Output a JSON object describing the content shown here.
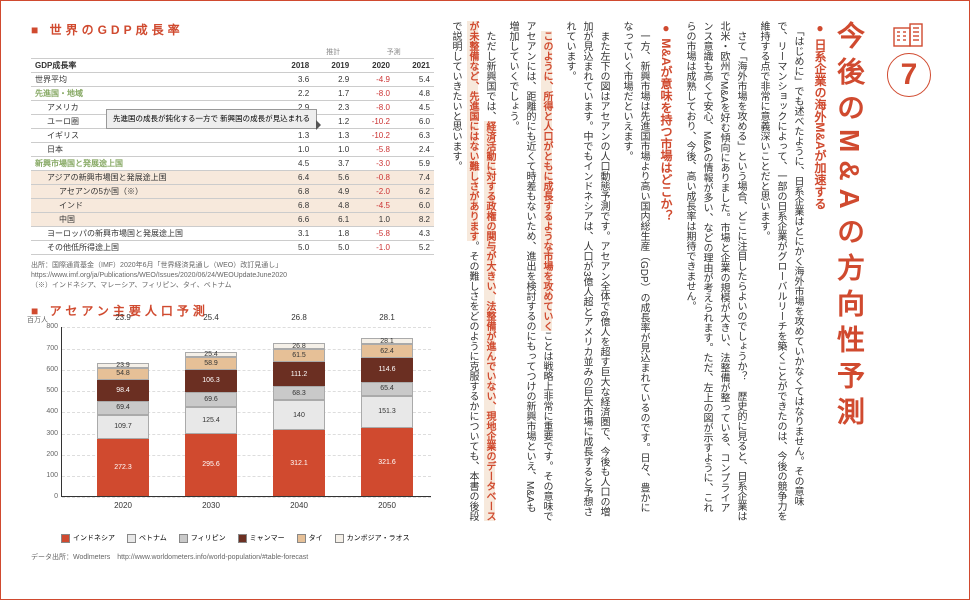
{
  "chapter": {
    "num": "7",
    "title": "今後のM&Aの方向性予測"
  },
  "bullets": [
    {
      "head": "日系企業の海外M&Aが加速する",
      "paras": [
        "「はじめに」でも述べたように、日系企業はとにかく海外市場を攻めていかなくてはなりません。その意味で、リーマンショックによって、一部の日系企業がグローバルリーチを築くことができたのは、今後の競争力を維持する点で非常に意義深いことだと思います。",
        "さて「海外市場を攻める」という場合、どこに注目したらよいのでしょうか？　歴史的に見ると、日系企業は北米・欧州でM&Aを好む傾向にありました。市場と企業の規模が大きい、法整備が整っている、コンプライアンス意識も高くて安心、M&Aの情報が多い、などの理由が考えられます。ただ、左上の図が示すように、これらの市場は成熟しており、今後、高い成長率は期待できません。"
      ]
    },
    {
      "head": "M&Aが意味を持つ市場はどこか？",
      "paras": [
        "一方、新興市場は先進国市場より高い国内総生産（GDP）の成長率が見込まれているのです。日々、豊かになっていく市場だといえます。",
        "また左下の図はアセアンの人口動態予測です。アセアン全体で6億人を超す巨大な経済圏で、今後も人口の増加が見込まれています。中でもインドネシアは、人口が3億人超とアメリカ並みの巨大市場に成長すると予想されています。"
      ],
      "hl1": "このように、所得と人口がともに成長するような市場を攻めていく",
      "tail1": "ことは戦略上非常に重要です。その意味でアセアンには、距離的にも近くて時差もないため、進出を検討するのにもってつけの新興市場といえ、M&Aも増加していくでしょう。",
      "tail2_pre": "ただし新興国では、",
      "hl2": "経済活動に対する政権の関与が大きい、法整備が進んでいない、現地企業のデータベースが未整備など、先進国にはない難しさがあります",
      "tail2_post": "。その難しさをどのように克服するかについても、本書の後段で説明していきたいと思います。"
    }
  ],
  "table": {
    "title": "世界のGDP成長率",
    "est_labels": [
      "推計",
      "予測"
    ],
    "years": [
      "2018",
      "2019",
      "2020",
      "2021"
    ],
    "row_label_head": "GDP成長率",
    "rows": [
      {
        "l": "世界平均",
        "v": [
          "3.6",
          "2.9",
          "-4.9",
          "5.4"
        ]
      },
      {
        "l": "先進国・地域",
        "v": [
          "2.2",
          "1.7",
          "-8.0",
          "4.8"
        ],
        "cls": "group"
      },
      {
        "l": "アメリカ",
        "v": [
          "2.9",
          "2.3",
          "-8.0",
          "4.5"
        ],
        "ind": 1
      },
      {
        "l": "ユーロ圏",
        "v": [
          "1.9",
          "1.2",
          "-10.2",
          "6.0"
        ],
        "ind": 1
      },
      {
        "l": "イギリス",
        "v": [
          "1.3",
          "1.3",
          "-10.2",
          "6.3"
        ],
        "ind": 1
      },
      {
        "l": "日本",
        "v": [
          "1.0",
          "1.0",
          "-5.8",
          "2.4"
        ],
        "ind": 1
      },
      {
        "l": "新興市場国と発展途上国",
        "v": [
          "4.5",
          "3.7",
          "-3.0",
          "5.9"
        ],
        "cls": "group"
      },
      {
        "l": "アジアの新興市場国と発展途上国",
        "v": [
          "6.4",
          "5.6",
          "-0.8",
          "7.4"
        ],
        "ind": 1,
        "hl": true
      },
      {
        "l": "アセアンの5か国（※）",
        "v": [
          "6.8",
          "4.9",
          "-2.0",
          "6.2"
        ],
        "ind": 2,
        "hl": true
      },
      {
        "l": "インド",
        "v": [
          "6.8",
          "4.8",
          "-4.5",
          "6.0"
        ],
        "ind": 2,
        "hl": true
      },
      {
        "l": "中国",
        "v": [
          "6.6",
          "6.1",
          "1.0",
          "8.2"
        ],
        "ind": 2,
        "hl": true
      },
      {
        "l": "ヨーロッパの新興市場国と発展途上国",
        "v": [
          "3.1",
          "1.8",
          "-5.8",
          "4.3"
        ],
        "ind": 1
      },
      {
        "l": "その他低所得途上国",
        "v": [
          "5.0",
          "5.0",
          "-1.0",
          "5.2"
        ],
        "ind": 1
      }
    ],
    "callout": "先進国の成長が鈍化する一方で\n新興国の成長が見込まれる",
    "src1": "出所：国際通貨基金（IMF）2020年6月「世界経済見通し（WEO）改訂見通し」",
    "src2": "https://www.imf.org/ja/Publications/WEO/Issues/2020/06/24/WEOUpdateJune2020",
    "src3": "（※）インドネシア、マレーシア、フィリピン、タイ、ベトナム"
  },
  "chart": {
    "title": "アセアン主要人口予測",
    "yunit": "百万人",
    "ymax": 800,
    "ystep": 100,
    "colors": {
      "indonesia": "#d04a2f",
      "vietnam": "#e8e8e8",
      "philippines": "#c9c9c9",
      "myanmar": "#6b2f22",
      "thai": "#e6c097",
      "cambodia": "#f5f0e8"
    },
    "series_order": [
      "indonesia",
      "vietnam",
      "philippines",
      "myanmar",
      "thai",
      "cambodia"
    ],
    "legend": {
      "indonesia": "インドネシア",
      "vietnam": "ベトナム",
      "philippines": "フィリピン",
      "myanmar": "ミャンマー",
      "thai": "タイ",
      "cambodia": "カンボジア・ラオス"
    },
    "bars": [
      {
        "x": "2020",
        "total": "23.9",
        "seg": {
          "indonesia": 272.3,
          "vietnam": 109.7,
          "philippines": 69.4,
          "myanmar": 98.4,
          "thai": 54.8,
          "cambodia": 23.9
        }
      },
      {
        "x": "2030",
        "total": "25.4",
        "seg": {
          "indonesia": 295.6,
          "vietnam": 125.4,
          "philippines": 69.6,
          "myanmar": 106.3,
          "thai": 58.9,
          "cambodia": 25.4
        }
      },
      {
        "x": "2040",
        "total": "26.8",
        "seg": {
          "indonesia": 312.1,
          "vietnam": 140.0,
          "philippines": 68.3,
          "myanmar": 111.2,
          "thai": 61.5,
          "cambodia": 26.8
        }
      },
      {
        "x": "2050",
        "total": "28.1",
        "seg": {
          "indonesia": 321.6,
          "vietnam": 151.3,
          "philippines": 65.4,
          "myanmar": 114.6,
          "thai": 62.4,
          "cambodia": 28.1
        }
      }
    ],
    "src": "データ出所：Wodlmeters　http://www.worldometers.info/world-population/#table-forecast"
  }
}
